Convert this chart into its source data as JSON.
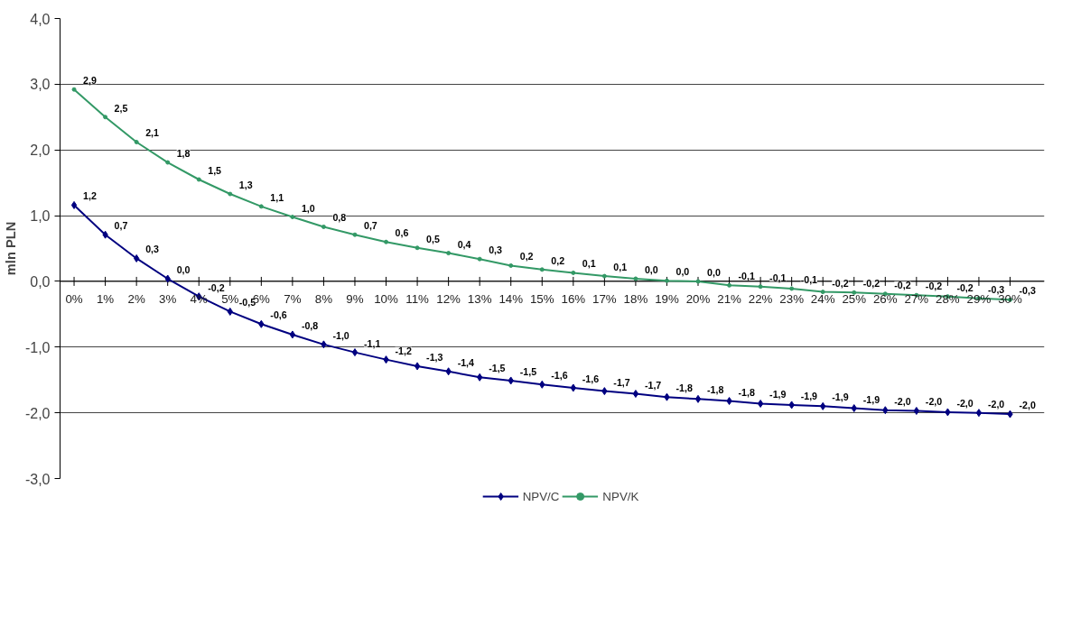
{
  "chart_data": {
    "type": "line",
    "ylabel": "mln PLN",
    "categories": [
      "0%",
      "1%",
      "2%",
      "3%",
      "4%",
      "5%",
      "6%",
      "7%",
      "8%",
      "9%",
      "10%",
      "11%",
      "12%",
      "13%",
      "14%",
      "15%",
      "16%",
      "17%",
      "18%",
      "19%",
      "20%",
      "21%",
      "22%",
      "23%",
      "24%",
      "25%",
      "26%",
      "27%",
      "28%",
      "29%",
      "30%"
    ],
    "series": [
      {
        "name": "NPV/C",
        "color": "#000080",
        "marker": "diamond",
        "values": [
          1.16,
          0.71,
          0.35,
          0.04,
          -0.23,
          -0.46,
          -0.65,
          -0.81,
          -0.96,
          -1.08,
          -1.19,
          -1.29,
          -1.37,
          -1.46,
          -1.51,
          -1.57,
          -1.62,
          -1.67,
          -1.71,
          -1.76,
          -1.79,
          -1.82,
          -1.86,
          -1.88,
          -1.9,
          -1.93,
          -1.96,
          -1.97,
          -1.99,
          -2.0,
          -2.02
        ],
        "value_labels": [
          "1,2",
          "0,7",
          "0,3",
          "0,0",
          "-0,2",
          "-0,5",
          "-0,6",
          "-0,8",
          "-1,0",
          "-1,1",
          "-1,2",
          "-1,3",
          "-1,4",
          "-1,5",
          "-1,5",
          "-1,6",
          "-1,6",
          "-1,7",
          "-1,7",
          "-1,8",
          "-1,8",
          "-1,8",
          "-1,9",
          "-1,9",
          "-1,9",
          "-1,9",
          "-2,0",
          "-2,0",
          "-2,0",
          "-2,0",
          "-2,0"
        ]
      },
      {
        "name": "NPV/K",
        "color": "#339966",
        "marker": "circle",
        "values": [
          2.92,
          2.5,
          2.12,
          1.81,
          1.55,
          1.33,
          1.14,
          0.98,
          0.83,
          0.71,
          0.6,
          0.51,
          0.43,
          0.34,
          0.24,
          0.18,
          0.13,
          0.08,
          0.04,
          0.01,
          0.0,
          -0.06,
          -0.08,
          -0.11,
          -0.16,
          -0.17,
          -0.19,
          -0.21,
          -0.23,
          -0.26,
          -0.28
        ],
        "value_labels": [
          "2,9",
          "2,5",
          "2,1",
          "1,8",
          "1,5",
          "1,3",
          "1,1",
          "1,0",
          "0,8",
          "0,7",
          "0,6",
          "0,5",
          "0,4",
          "0,3",
          "0,2",
          "0,2",
          "0,1",
          "0,1",
          "0,0",
          "0,0",
          "0,0",
          "-0,1",
          "-0,1",
          "-0,1",
          "-0,2",
          "-0,2",
          "-0,2",
          "-0,2",
          "-0,2",
          "-0,3",
          "-0,3"
        ]
      }
    ],
    "ylim": [
      -3,
      4
    ],
    "yticks": [
      {
        "value": -3,
        "label": "-3,0"
      },
      {
        "value": -2,
        "label": "-2,0"
      },
      {
        "value": -1,
        "label": "-1,0"
      },
      {
        "value": 0,
        "label": "0,0"
      },
      {
        "value": 1,
        "label": "1,0"
      },
      {
        "value": 2,
        "label": "2,0"
      },
      {
        "value": 3,
        "label": "3,0"
      },
      {
        "value": 4,
        "label": "4,0"
      }
    ],
    "grid": "y",
    "legend": "bottom",
    "line_style": "solid"
  }
}
